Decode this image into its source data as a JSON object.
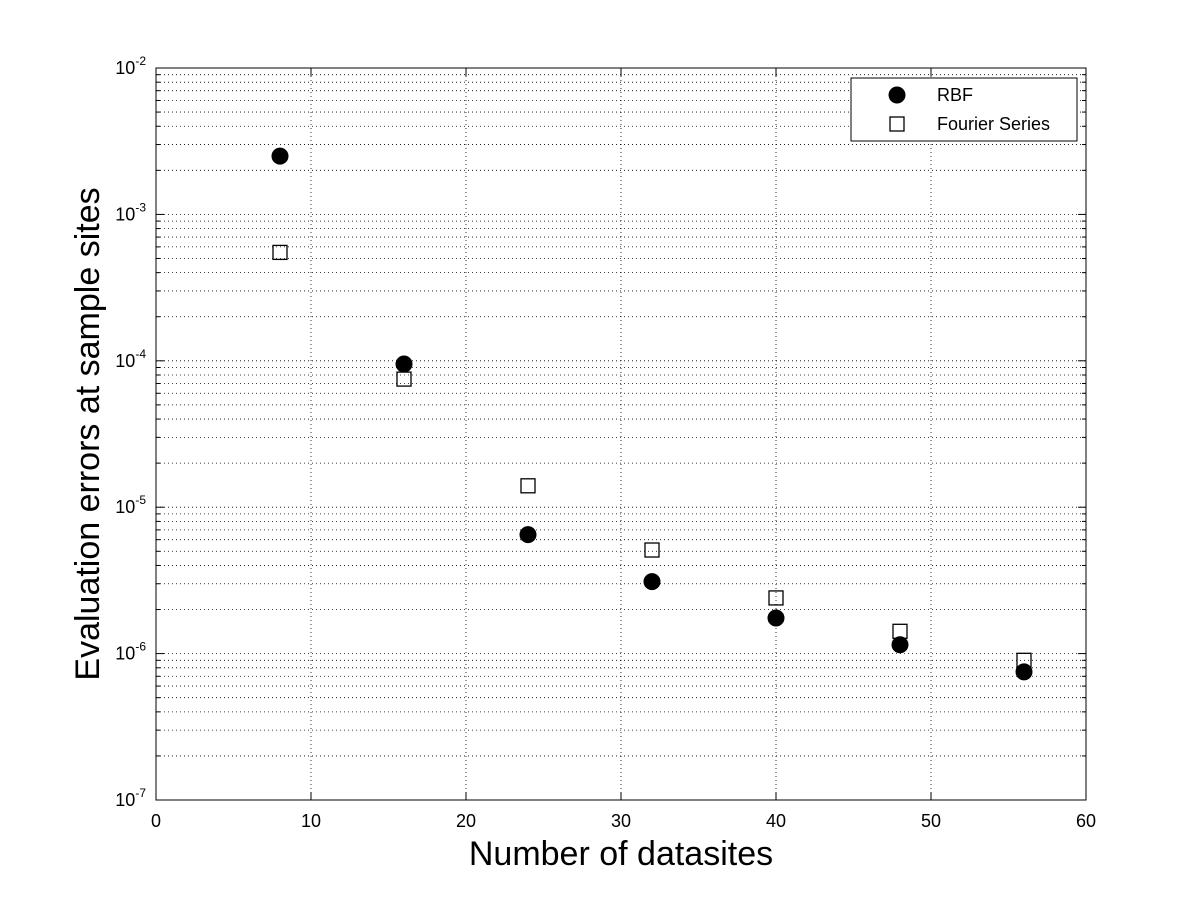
{
  "chart_data": {
    "type": "scatter",
    "title": "",
    "xlabel": "Number of datasites",
    "ylabel": "Evaluation errors at sample sites",
    "xlim": [
      0,
      60
    ],
    "ylim": [
      1e-07,
      0.01
    ],
    "yscale": "log",
    "grid": true,
    "legend_position": "top-right",
    "x_ticks": [
      "0",
      "10",
      "20",
      "30",
      "40",
      "50",
      "60"
    ],
    "y_ticks": [
      {
        "base": "10",
        "exp": "-7"
      },
      {
        "base": "10",
        "exp": "-6"
      },
      {
        "base": "10",
        "exp": "-5"
      },
      {
        "base": "10",
        "exp": "-4"
      },
      {
        "base": "10",
        "exp": "-3"
      },
      {
        "base": "10",
        "exp": "-2"
      }
    ],
    "series": [
      {
        "name": "RBF",
        "marker": "filled-circle",
        "color": "#000000",
        "x": [
          8,
          16,
          24,
          32,
          40,
          48,
          56
        ],
        "y": [
          0.0025,
          9.5e-05,
          6.5e-06,
          3.1e-06,
          1.75e-06,
          1.15e-06,
          7.5e-07
        ]
      },
      {
        "name": "Fourier Series",
        "marker": "open-square",
        "color": "#000000",
        "x": [
          8,
          16,
          24,
          32,
          40,
          48,
          56
        ],
        "y": [
          0.00055,
          7.5e-05,
          1.4e-05,
          5.1e-06,
          2.4e-06,
          1.42e-06,
          9e-07
        ]
      }
    ]
  }
}
